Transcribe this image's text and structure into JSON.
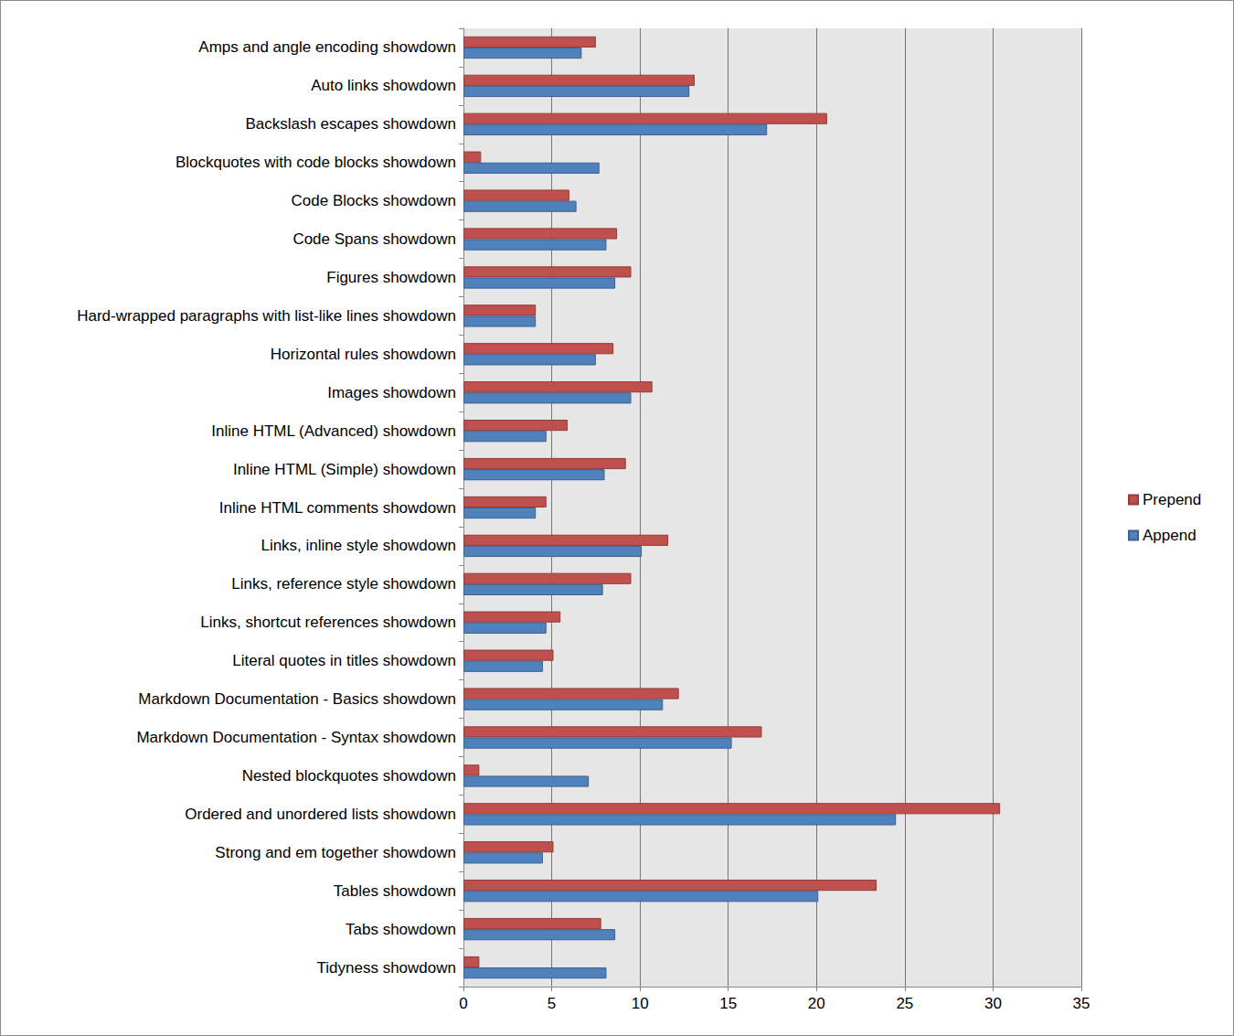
{
  "chart_data": {
    "type": "bar",
    "orientation": "horizontal",
    "categories": [
      "Amps and angle encoding showdown",
      "Auto links showdown",
      "Backslash escapes showdown",
      "Blockquotes with code blocks showdown",
      "Code Blocks showdown",
      "Code Spans showdown",
      "Figures showdown",
      "Hard-wrapped paragraphs with list-like lines showdown",
      "Horizontal rules showdown",
      "Images showdown",
      "Inline HTML (Advanced) showdown",
      "Inline HTML (Simple) showdown",
      "Inline HTML comments showdown",
      "Links, inline style showdown",
      "Links, reference style showdown",
      "Links, shortcut references showdown",
      "Literal quotes in titles showdown",
      "Markdown Documentation - Basics showdown",
      "Markdown Documentation - Syntax showdown",
      "Nested blockquotes showdown",
      "Ordered and unordered lists showdown",
      "Strong and em together showdown",
      "Tables showdown",
      "Tabs showdown",
      "Tidyness showdown"
    ],
    "series": [
      {
        "name": "Prepend",
        "color": "#c0504d",
        "values": [
          7.5,
          13.1,
          20.6,
          1.0,
          6.0,
          8.7,
          9.5,
          4.1,
          8.5,
          10.7,
          5.9,
          9.2,
          4.7,
          11.6,
          9.5,
          5.5,
          5.1,
          12.2,
          16.9,
          0.9,
          30.4,
          5.1,
          23.4,
          7.8,
          0.9
        ]
      },
      {
        "name": "Append",
        "color": "#4f81bd",
        "values": [
          6.7,
          12.8,
          17.2,
          7.7,
          6.4,
          8.1,
          8.6,
          4.1,
          7.5,
          9.5,
          4.7,
          8.0,
          4.1,
          10.1,
          7.9,
          4.7,
          4.5,
          11.3,
          15.2,
          7.1,
          24.5,
          4.5,
          20.1,
          8.6,
          8.1
        ]
      }
    ],
    "xlim": [
      0,
      35
    ],
    "xticks": [
      0,
      5,
      10,
      15,
      20,
      25,
      30,
      35
    ],
    "grid": true,
    "legend": "right"
  }
}
